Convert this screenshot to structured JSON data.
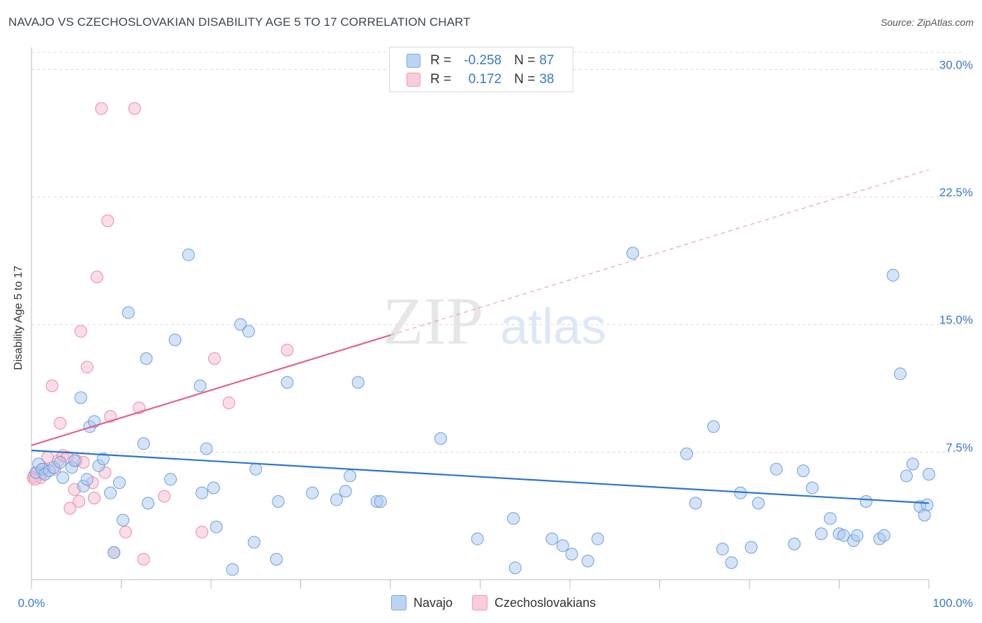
{
  "title": "NAVAJO VS CZECHOSLOVAKIAN DISABILITY AGE 5 TO 17 CORRELATION CHART",
  "source": "Source: ZipAtlas.com",
  "watermark": {
    "zip": "ZIP",
    "atlas": "atlas"
  },
  "legend": {
    "r_key": "R =",
    "n_key": "N =",
    "navajo": {
      "r": "-0.258",
      "n": "87"
    },
    "czech": {
      "r": "0.172",
      "n": "38"
    }
  },
  "colors": {
    "navajo_fill": "#a9c8f0",
    "navajo_stroke": "#6a9fdc",
    "navajo_line": "#2e74c9",
    "czech_fill": "#f7c0d3",
    "czech_stroke": "#e88aaa",
    "czech_line": "#e0628f",
    "tick_label": "#3a78c9",
    "grid": "#d8d8d8"
  },
  "chart_data": {
    "type": "scatter",
    "title": "NAVAJO VS CZECHOSLOVAKIAN DISABILITY AGE 5 TO 17 CORRELATION CHART",
    "xlabel": "",
    "ylabel": "Disability Age 5 to 17",
    "xlim": [
      0,
      100
    ],
    "ylim": [
      0,
      31
    ],
    "x_tick_labels": [
      "0.0%",
      "100.0%"
    ],
    "y_ticks": [
      7.5,
      15.0,
      22.5,
      30.0
    ],
    "y_tick_labels": [
      "7.5%",
      "15.0%",
      "22.5%",
      "30.0%"
    ],
    "grid": true,
    "legend_position": "top-center",
    "series": [
      {
        "name": "Navajo",
        "trend": {
          "x": [
            0,
            100
          ],
          "y": [
            7.6,
            4.5
          ],
          "dashed_from": null
        },
        "points": [
          [
            0.5,
            6.3
          ],
          [
            0.8,
            6.8
          ],
          [
            1.2,
            6.5
          ],
          [
            1.5,
            6.2
          ],
          [
            2.0,
            6.4
          ],
          [
            2.5,
            6.6
          ],
          [
            3.2,
            6.9
          ],
          [
            3.5,
            6.0
          ],
          [
            4.5,
            6.6
          ],
          [
            4.8,
            7.0
          ],
          [
            5.5,
            10.7
          ],
          [
            5.8,
            5.5
          ],
          [
            6.2,
            5.9
          ],
          [
            6.5,
            9.0
          ],
          [
            7.0,
            9.3
          ],
          [
            7.5,
            6.7
          ],
          [
            8.0,
            7.1
          ],
          [
            8.8,
            5.1
          ],
          [
            9.2,
            1.6
          ],
          [
            9.8,
            5.7
          ],
          [
            10.2,
            3.5
          ],
          [
            10.8,
            15.7
          ],
          [
            12.5,
            8.0
          ],
          [
            12.8,
            13.0
          ],
          [
            13.0,
            4.5
          ],
          [
            15.5,
            5.9
          ],
          [
            16.0,
            14.1
          ],
          [
            17.5,
            19.1
          ],
          [
            18.8,
            11.4
          ],
          [
            19.0,
            5.1
          ],
          [
            19.5,
            7.7
          ],
          [
            20.3,
            5.4
          ],
          [
            20.6,
            3.1
          ],
          [
            22.4,
            0.6
          ],
          [
            23.3,
            15.0
          ],
          [
            24.2,
            14.6
          ],
          [
            24.8,
            2.2
          ],
          [
            25.0,
            6.5
          ],
          [
            27.3,
            1.2
          ],
          [
            27.5,
            4.6
          ],
          [
            28.5,
            11.6
          ],
          [
            31.3,
            5.1
          ],
          [
            34.0,
            4.7
          ],
          [
            35.0,
            5.2
          ],
          [
            35.5,
            6.1
          ],
          [
            36.4,
            11.6
          ],
          [
            38.5,
            4.6
          ],
          [
            38.9,
            4.6
          ],
          [
            45.6,
            8.3
          ],
          [
            49.7,
            2.4
          ],
          [
            53.7,
            3.6
          ],
          [
            53.9,
            0.7
          ],
          [
            58.0,
            2.4
          ],
          [
            59.2,
            2.0
          ],
          [
            60.2,
            1.5
          ],
          [
            62.0,
            1.1
          ],
          [
            63.1,
            2.4
          ],
          [
            67.0,
            19.2
          ],
          [
            73.0,
            7.4
          ],
          [
            74.0,
            4.5
          ],
          [
            76.0,
            9.0
          ],
          [
            77.0,
            1.8
          ],
          [
            78.0,
            1.0
          ],
          [
            79.0,
            5.1
          ],
          [
            80.2,
            1.9
          ],
          [
            81.0,
            4.5
          ],
          [
            83.0,
            6.5
          ],
          [
            85.0,
            2.1
          ],
          [
            86.0,
            6.4
          ],
          [
            87.0,
            5.4
          ],
          [
            88.0,
            2.7
          ],
          [
            89.0,
            3.6
          ],
          [
            90.0,
            2.7
          ],
          [
            90.5,
            2.6
          ],
          [
            91.6,
            2.3
          ],
          [
            92.0,
            2.6
          ],
          [
            93.0,
            4.6
          ],
          [
            94.5,
            2.4
          ],
          [
            95.0,
            2.6
          ],
          [
            96.0,
            17.9
          ],
          [
            96.8,
            12.1
          ],
          [
            97.5,
            6.1
          ],
          [
            98.2,
            6.8
          ],
          [
            99.0,
            4.3
          ],
          [
            99.5,
            3.8
          ],
          [
            99.8,
            4.4
          ],
          [
            100.0,
            6.2
          ]
        ]
      },
      {
        "name": "Czechoslovakians",
        "trend": {
          "x": [
            0,
            100
          ],
          "y": [
            7.9,
            24.1
          ],
          "dashed_from": 40
        },
        "points": [
          [
            0.3,
            6.1
          ],
          [
            0.6,
            6.3
          ],
          [
            1.0,
            6.0
          ],
          [
            1.4,
            6.5
          ],
          [
            1.8,
            7.2
          ],
          [
            2.3,
            11.4
          ],
          [
            2.6,
            6.5
          ],
          [
            3.0,
            7.0
          ],
          [
            3.2,
            9.2
          ],
          [
            3.5,
            7.3
          ],
          [
            4.0,
            7.2
          ],
          [
            4.3,
            4.2
          ],
          [
            4.8,
            5.3
          ],
          [
            5.0,
            7.0
          ],
          [
            5.3,
            4.6
          ],
          [
            5.5,
            14.6
          ],
          [
            5.8,
            6.9
          ],
          [
            6.2,
            12.5
          ],
          [
            6.8,
            5.7
          ],
          [
            7.0,
            4.8
          ],
          [
            7.3,
            17.8
          ],
          [
            7.8,
            27.7
          ],
          [
            8.2,
            6.3
          ],
          [
            8.5,
            21.1
          ],
          [
            8.8,
            9.6
          ],
          [
            9.2,
            1.6
          ],
          [
            10.5,
            2.8
          ],
          [
            11.5,
            27.7
          ],
          [
            12.0,
            10.1
          ],
          [
            12.5,
            1.2
          ],
          [
            14.8,
            4.9
          ],
          [
            19.0,
            2.8
          ],
          [
            20.4,
            13.0
          ],
          [
            22.0,
            10.4
          ],
          [
            28.5,
            13.5
          ],
          [
            0.2,
            6.0
          ],
          [
            0.4,
            5.9
          ],
          [
            1.2,
            6.3
          ]
        ]
      }
    ]
  },
  "bottom_legend": {
    "navajo": "Navajo",
    "czech": "Czechoslovakians"
  }
}
